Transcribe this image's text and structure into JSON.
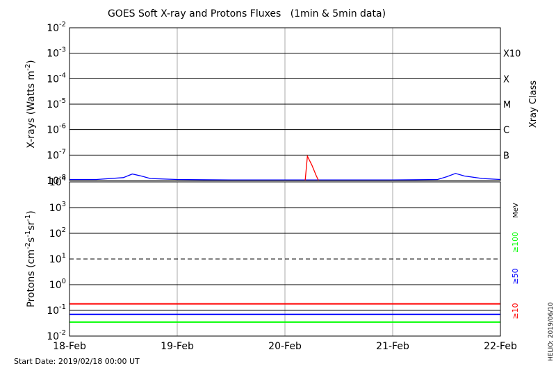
{
  "chart_data": [
    {
      "type": "line",
      "title": "GOES Soft X-ray and Protons Fluxes   (1min & 5min data)",
      "ylabel": "X-rays (Watts m^-2)",
      "ylabel_main": "X-rays (Watts m",
      "ylabel_sup": "-2",
      "ylabel_close": ")",
      "yscale": "log",
      "ylim": [
        1e-08,
        0.01
      ],
      "yticks": [
        {
          "value": 1e-08,
          "base": "10",
          "exp": "-8"
        },
        {
          "value": 1e-07,
          "base": "10",
          "exp": "-7"
        },
        {
          "value": 1e-06,
          "base": "10",
          "exp": "-6"
        },
        {
          "value": 1e-05,
          "base": "10",
          "exp": "-5"
        },
        {
          "value": 0.0001,
          "base": "10",
          "exp": "-4"
        },
        {
          "value": 0.001,
          "base": "10",
          "exp": "-3"
        },
        {
          "value": 0.01,
          "base": "10",
          "exp": "-2"
        }
      ],
      "xray_classes": [
        {
          "label": "X10",
          "value": 0.001
        },
        {
          "label": "X",
          "value": 0.0001
        },
        {
          "label": "M",
          "value": 1e-05
        },
        {
          "label": "C",
          "value": 1e-06
        },
        {
          "label": "B",
          "value": 1e-07
        }
      ],
      "right_axis_label": "Xray Class",
      "xlim": [
        "2019-02-18",
        "2019-02-22"
      ],
      "series": [
        {
          "color": "#0000ff",
          "x": [
            "2019-02-18 00:00",
            "2019-02-18 06:00",
            "2019-02-18 12:00",
            "2019-02-18 14:00",
            "2019-02-18 16:00",
            "2019-02-18 18:00",
            "2019-02-19 00:00",
            "2019-02-19 12:00",
            "2019-02-20 00:00",
            "2019-02-20 12:00",
            "2019-02-21 00:00",
            "2019-02-21 10:00",
            "2019-02-21 12:00",
            "2019-02-21 14:00",
            "2019-02-21 16:00",
            "2019-02-21 20:00",
            "2019-02-22 00:00"
          ],
          "y": [
            1.1e-08,
            1.1e-08,
            1.3e-08,
            1.8e-08,
            1.5e-08,
            1.2e-08,
            1.1e-08,
            1.05e-08,
            1.05e-08,
            1.05e-08,
            1.05e-08,
            1.1e-08,
            1.4e-08,
            1.9e-08,
            1.5e-08,
            1.2e-08,
            1.1e-08
          ]
        },
        {
          "color": "#ff0000",
          "x": [
            "2019-02-20 04:30",
            "2019-02-20 05:00",
            "2019-02-20 06:00",
            "2019-02-20 07:00",
            "2019-02-20 07:30"
          ],
          "y": [
            1e-08,
            9e-08,
            4e-08,
            1.5e-08,
            1e-08
          ]
        }
      ]
    },
    {
      "type": "line",
      "ylabel": "Protons (cm^-2 s^-1 sr^-1)",
      "ylabel_parts": [
        "Protons (cm",
        "-2",
        "s",
        "-1",
        "sr",
        "-1",
        ")"
      ],
      "yscale": "log",
      "ylim": [
        0.01,
        10000
      ],
      "yticks": [
        {
          "value": 0.01,
          "base": "10",
          "exp": "-2"
        },
        {
          "value": 0.1,
          "base": "10",
          "exp": "-1"
        },
        {
          "value": 1,
          "base": "10",
          "exp": "0"
        },
        {
          "value": 10,
          "base": "10",
          "exp": "1"
        },
        {
          "value": 100,
          "base": "10",
          "exp": "2"
        },
        {
          "value": 1000,
          "base": "10",
          "exp": "3"
        },
        {
          "value": 10000,
          "base": "10",
          "exp": "4"
        }
      ],
      "threshold": 10,
      "xlim": [
        "2019-02-18",
        "2019-02-22"
      ],
      "xticklabels": [
        "18-Feb",
        "19-Feb",
        "20-Feb",
        "21-Feb",
        "22-Feb"
      ],
      "units_label": "MeV",
      "series": [
        {
          "name": "≥10",
          "color": "#ff0000",
          "x": [
            "2019-02-18",
            "2019-02-22"
          ],
          "y": [
            0.18,
            0.18
          ]
        },
        {
          "name": "≥50",
          "color": "#0000ff",
          "x": [
            "2019-02-18",
            "2019-02-22"
          ],
          "y": [
            0.07,
            0.07
          ]
        },
        {
          "name": "≥100",
          "color": "#00ff00",
          "x": [
            "2019-02-18",
            "2019-02-22"
          ],
          "y": [
            0.035,
            0.035
          ]
        }
      ]
    }
  ],
  "footer": {
    "start_date": "Start Date: 2019/02/18 00:00 UT",
    "credit": "HELIO: 2019/06/10"
  }
}
